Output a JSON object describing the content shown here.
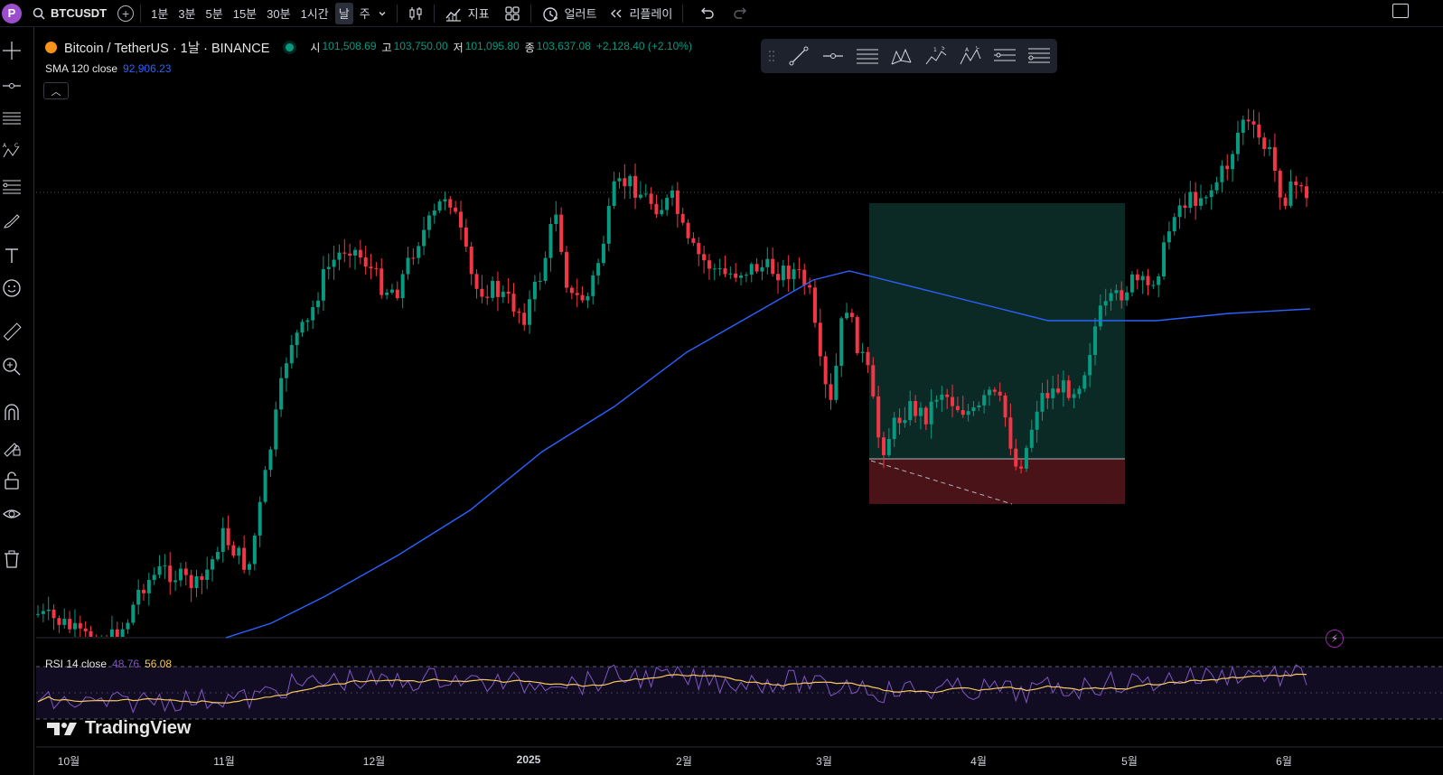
{
  "topbar": {
    "avatar_letter": "P",
    "symbol": "BTCUSDT",
    "intervals": [
      "1분",
      "3분",
      "5분",
      "15분",
      "30분",
      "1시간",
      "날",
      "주"
    ],
    "active_interval": "날",
    "indicators_label": "지표",
    "alert_label": "얼러트",
    "replay_label": "리플레이"
  },
  "legend": {
    "title": "Bitcoin / TetherUS · 1날 · BINANCE",
    "open_k": "시",
    "open_v": "101,508.69",
    "high_k": "고",
    "high_v": "103,750.00",
    "low_k": "저",
    "low_v": "101,095.80",
    "close_k": "종",
    "close_v": "103,637.08",
    "change": "+2,128.40 (+2.10%)"
  },
  "sma": {
    "label": "SMA 120 close",
    "value": "92,906.23"
  },
  "rsi": {
    "label": "RSI 14 close",
    "value1": "48.76",
    "value2": "56.08"
  },
  "brand": {
    "name": "TradingView"
  },
  "time_axis": [
    "10월",
    "11월",
    "12월",
    "2025",
    "2월",
    "3월",
    "4월",
    "5월",
    "6월"
  ],
  "colors": {
    "up": "#089981",
    "down": "#f23645",
    "sma": "#2962ff",
    "rsi": "#7e57c2",
    "rsi_ma": "#f7c85c",
    "position_profit": "#0b2a25",
    "position_loss": "#4a1317"
  },
  "chart_data": {
    "type": "candlestick",
    "symbol": "BTCUSDT",
    "exchange": "BINANCE",
    "timeframe": "1D",
    "x_range": [
      "2024-10",
      "2025-06"
    ],
    "y_range_approx": [
      59000,
      112000
    ],
    "overlays": [
      "SMA 120 close",
      "long position tool"
    ],
    "lower_panel": "RSI 14 close"
  }
}
